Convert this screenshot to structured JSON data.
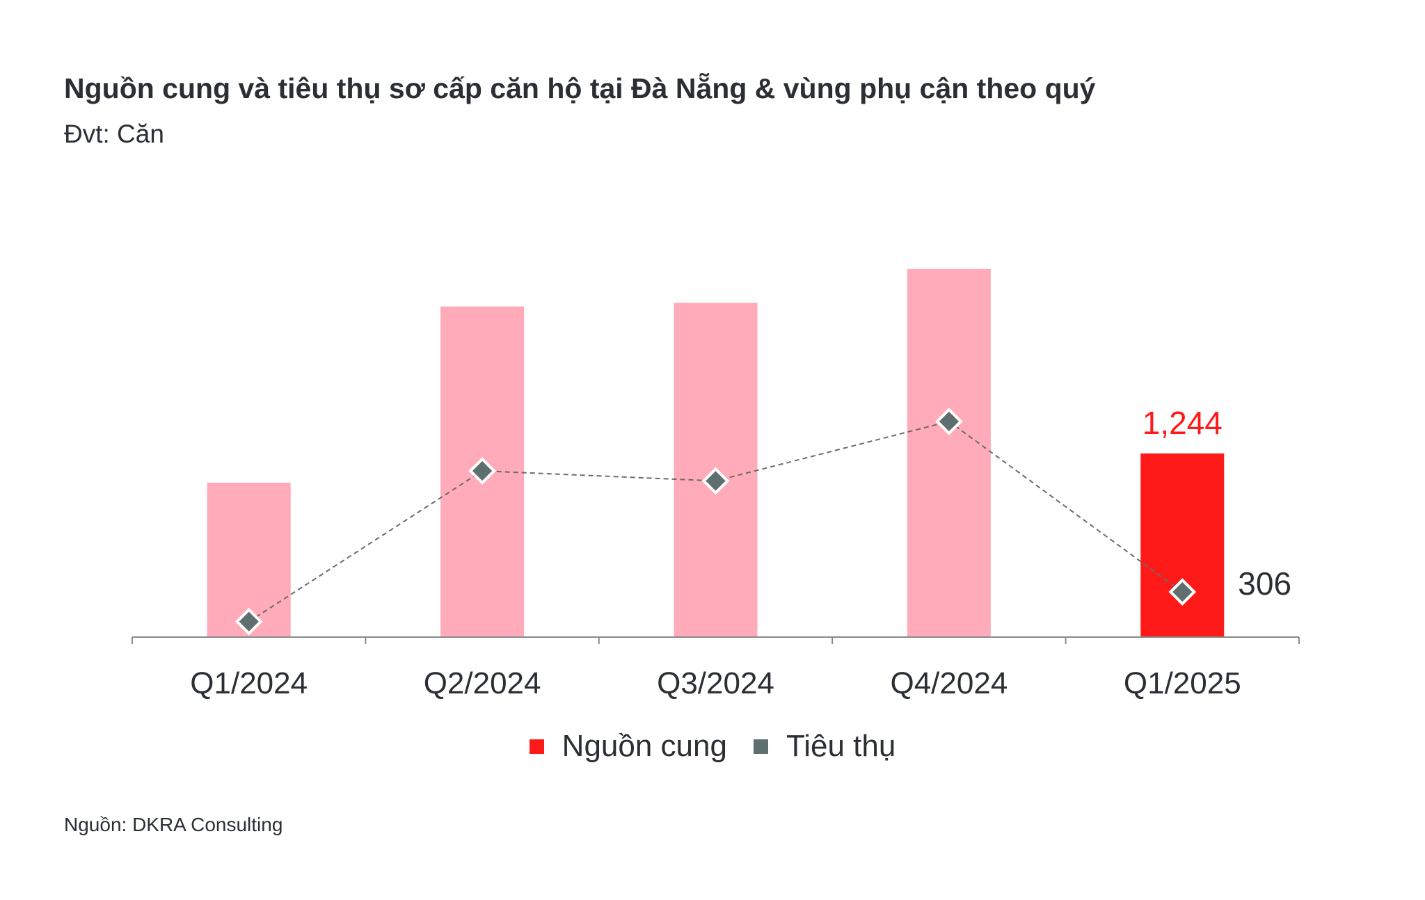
{
  "header": {
    "title": "Nguồn cung và tiêu thụ sơ cấp căn hộ tại Đà Nẵng & vùng phụ cận theo quý",
    "subtitle": "Đvt: Căn"
  },
  "footer": {
    "source": "Nguồn: DKRA Consulting"
  },
  "colors": {
    "supply_bar": "#ffabb9",
    "supply_highlight": "#ff1a1a",
    "consumption_marker": "#5f6e6e",
    "line": "#6b6b6b",
    "axis": "#8a8a8a",
    "text": "#2b2f33"
  },
  "chart_data": {
    "type": "bar+line",
    "categories": [
      "Q1/2024",
      "Q2/2024",
      "Q3/2024",
      "Q4/2024",
      "Q1/2025"
    ],
    "series": [
      {
        "name": "Nguồn cung",
        "type": "bar",
        "values": [
          1046,
          2240,
          2265,
          2494,
          1244
        ]
      },
      {
        "name": "Tiêu thụ",
        "type": "line",
        "marker": "diamond",
        "line_style": "dashed",
        "values": [
          105,
          1126,
          1058,
          1461,
          306
        ]
      }
    ],
    "data_labels": [
      {
        "series": "Nguồn cung",
        "category": "Q1/2025",
        "text": "1,244"
      },
      {
        "series": "Tiêu thụ",
        "category": "Q1/2025",
        "text": "306"
      }
    ],
    "ylim": [
      0,
      2600
    ],
    "y_axis_visible": false,
    "grid": false,
    "legend": "bottom-center",
    "highlighted_category": "Q1/2025"
  }
}
